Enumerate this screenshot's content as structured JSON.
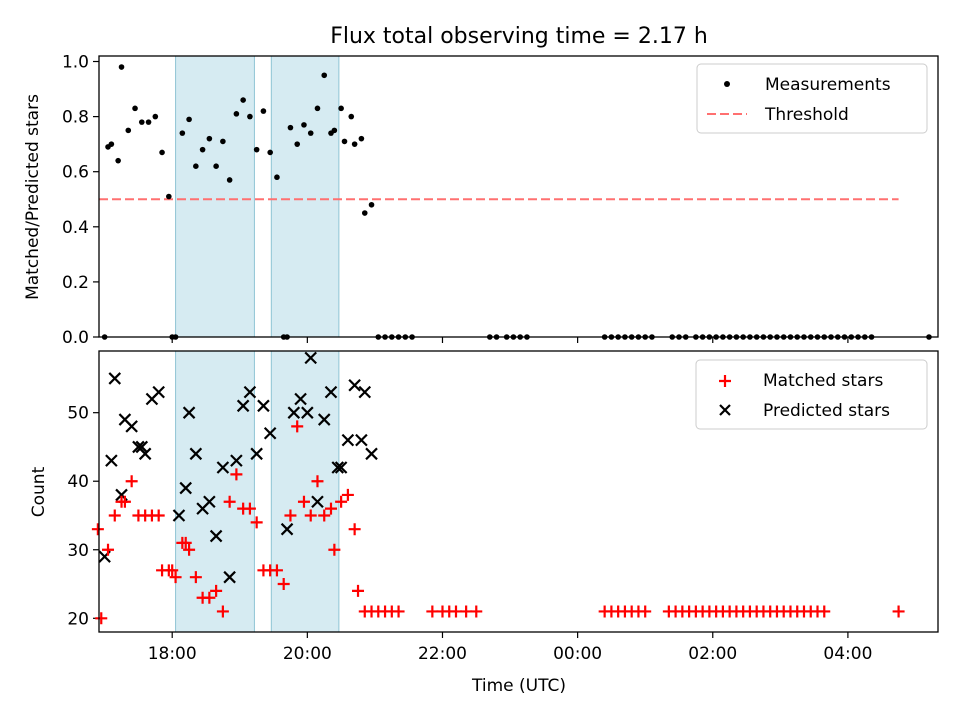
{
  "chart_data": [
    {
      "type": "scatter",
      "title": "Flux total observing time = 2.17 h",
      "xlabel": "",
      "ylabel": "Matched/Predicted stars",
      "xlim": [
        "16:55",
        "05:20"
      ],
      "ylim": [
        0,
        1.02
      ],
      "yticks": [
        0.0,
        0.2,
        0.4,
        0.6,
        0.8,
        1.0
      ],
      "ytick_labels": [
        "0.0",
        "0.2",
        "0.4",
        "0.6",
        "0.8",
        "1.0"
      ],
      "threshold": {
        "value": 0.5,
        "from": "16:55",
        "to": "04:45"
      },
      "shaded_intervals": [
        [
          "18:03",
          "19:13"
        ],
        [
          "19:28",
          "20:28"
        ]
      ],
      "legend": {
        "placement": "top-right",
        "entries": [
          "Measurements",
          "Threshold"
        ]
      },
      "series": [
        {
          "name": "Measurements",
          "color": "#000000",
          "marker": "dot",
          "points": [
            [
              "17:00",
              0.0
            ],
            [
              "17:03",
              0.69
            ],
            [
              "17:06",
              0.7
            ],
            [
              "17:12",
              0.64
            ],
            [
              "17:15",
              0.98
            ],
            [
              "17:21",
              0.75
            ],
            [
              "17:27",
              0.83
            ],
            [
              "17:33",
              0.78
            ],
            [
              "17:39",
              0.78
            ],
            [
              "17:45",
              0.8
            ],
            [
              "17:51",
              0.67
            ],
            [
              "17:57",
              0.51
            ],
            [
              "18:00",
              0.0
            ],
            [
              "18:03",
              0.0
            ],
            [
              "18:09",
              0.74
            ],
            [
              "18:15",
              0.79
            ],
            [
              "18:21",
              0.62
            ],
            [
              "18:27",
              0.68
            ],
            [
              "18:33",
              0.72
            ],
            [
              "18:39",
              0.62
            ],
            [
              "18:45",
              0.71
            ],
            [
              "18:51",
              0.57
            ],
            [
              "18:57",
              0.81
            ],
            [
              "19:03",
              0.86
            ],
            [
              "19:09",
              0.8
            ],
            [
              "19:15",
              0.68
            ],
            [
              "19:21",
              0.82
            ],
            [
              "19:27",
              0.67
            ],
            [
              "19:33",
              0.58
            ],
            [
              "19:39",
              0.0
            ],
            [
              "19:42",
              0.0
            ],
            [
              "19:45",
              0.76
            ],
            [
              "19:51",
              0.7
            ],
            [
              "19:57",
              0.77
            ],
            [
              "20:03",
              0.74
            ],
            [
              "20:09",
              0.83
            ],
            [
              "20:15",
              0.95
            ],
            [
              "20:21",
              0.74
            ],
            [
              "20:24",
              0.75
            ],
            [
              "20:30",
              0.83
            ],
            [
              "20:33",
              0.71
            ],
            [
              "20:39",
              0.8
            ],
            [
              "20:42",
              0.7
            ],
            [
              "20:48",
              0.72
            ],
            [
              "20:51",
              0.45
            ],
            [
              "20:57",
              0.48
            ],
            [
              "21:03",
              0.0
            ],
            [
              "21:09",
              0.0
            ],
            [
              "21:15",
              0.0
            ],
            [
              "21:21",
              0.0
            ],
            [
              "21:27",
              0.0
            ],
            [
              "21:33",
              0.0
            ],
            [
              "22:42",
              0.0
            ],
            [
              "22:48",
              0.0
            ],
            [
              "22:57",
              0.0
            ],
            [
              "23:03",
              0.0
            ],
            [
              "23:09",
              0.0
            ],
            [
              "23:15",
              0.0
            ],
            [
              "00:24",
              0.0
            ],
            [
              "00:30",
              0.0
            ],
            [
              "00:36",
              0.0
            ],
            [
              "00:42",
              0.0
            ],
            [
              "00:48",
              0.0
            ],
            [
              "00:54",
              0.0
            ],
            [
              "01:00",
              0.0
            ],
            [
              "01:06",
              0.0
            ],
            [
              "01:24",
              0.0
            ],
            [
              "01:30",
              0.0
            ],
            [
              "01:36",
              0.0
            ],
            [
              "01:45",
              0.0
            ],
            [
              "01:51",
              0.0
            ],
            [
              "01:57",
              0.0
            ],
            [
              "02:03",
              0.0
            ],
            [
              "02:09",
              0.0
            ],
            [
              "02:15",
              0.0
            ],
            [
              "02:21",
              0.0
            ],
            [
              "02:27",
              0.0
            ],
            [
              "02:33",
              0.0
            ],
            [
              "02:39",
              0.0
            ],
            [
              "02:45",
              0.0
            ],
            [
              "02:51",
              0.0
            ],
            [
              "02:57",
              0.0
            ],
            [
              "03:03",
              0.0
            ],
            [
              "03:09",
              0.0
            ],
            [
              "03:15",
              0.0
            ],
            [
              "03:21",
              0.0
            ],
            [
              "03:27",
              0.0
            ],
            [
              "03:33",
              0.0
            ],
            [
              "03:39",
              0.0
            ],
            [
              "03:45",
              0.0
            ],
            [
              "03:51",
              0.0
            ],
            [
              "03:57",
              0.0
            ],
            [
              "04:03",
              0.0
            ],
            [
              "04:09",
              0.0
            ],
            [
              "04:15",
              0.0
            ],
            [
              "04:21",
              0.0
            ],
            [
              "05:12",
              0.0
            ]
          ]
        },
        {
          "name": "Threshold",
          "color": "#ff7070",
          "style": "dashed"
        }
      ]
    },
    {
      "type": "scatter",
      "title": "",
      "xlabel": "Time (UTC)",
      "ylabel": "Count",
      "xlim": [
        "16:55",
        "05:20"
      ],
      "ylim": [
        18,
        59
      ],
      "yticks": [
        20,
        30,
        40,
        50
      ],
      "xtick_labels": [
        "18:00",
        "20:00",
        "22:00",
        "00:00",
        "02:00",
        "04:00"
      ],
      "shaded_intervals": [
        [
          "18:03",
          "19:13"
        ],
        [
          "19:28",
          "20:28"
        ]
      ],
      "legend": {
        "placement": "top-right",
        "entries": [
          "Matched stars",
          "Predicted stars"
        ]
      },
      "series": [
        {
          "name": "Matched stars",
          "color": "#ff0000",
          "marker": "plus",
          "points": [
            [
              "16:54",
              33
            ],
            [
              "16:57",
              20
            ],
            [
              "17:03",
              30
            ],
            [
              "17:09",
              35
            ],
            [
              "17:15",
              37
            ],
            [
              "17:18",
              37
            ],
            [
              "17:24",
              40
            ],
            [
              "17:30",
              35
            ],
            [
              "17:36",
              35
            ],
            [
              "17:42",
              35
            ],
            [
              "17:48",
              35
            ],
            [
              "17:51",
              27
            ],
            [
              "17:57",
              27
            ],
            [
              "18:00",
              27
            ],
            [
              "18:03",
              26
            ],
            [
              "18:09",
              31
            ],
            [
              "18:12",
              31
            ],
            [
              "18:15",
              30
            ],
            [
              "18:21",
              26
            ],
            [
              "18:27",
              23
            ],
            [
              "18:33",
              23
            ],
            [
              "18:39",
              24
            ],
            [
              "18:45",
              21
            ],
            [
              "18:51",
              37
            ],
            [
              "18:57",
              41
            ],
            [
              "19:03",
              36
            ],
            [
              "19:09",
              36
            ],
            [
              "19:15",
              34
            ],
            [
              "19:21",
              27
            ],
            [
              "19:27",
              27
            ],
            [
              "19:33",
              27
            ],
            [
              "19:39",
              25
            ],
            [
              "19:45",
              35
            ],
            [
              "19:51",
              48
            ],
            [
              "19:57",
              37
            ],
            [
              "20:03",
              35
            ],
            [
              "20:09",
              40
            ],
            [
              "20:15",
              35
            ],
            [
              "20:21",
              36
            ],
            [
              "20:24",
              30
            ],
            [
              "20:30",
              37
            ],
            [
              "20:36",
              38
            ],
            [
              "20:42",
              33
            ],
            [
              "20:45",
              24
            ],
            [
              "20:51",
              21
            ],
            [
              "20:57",
              21
            ],
            [
              "21:03",
              21
            ],
            [
              "21:09",
              21
            ],
            [
              "21:15",
              21
            ],
            [
              "21:21",
              21
            ],
            [
              "21:51",
              21
            ],
            [
              "22:00",
              21
            ],
            [
              "22:06",
              21
            ],
            [
              "22:12",
              21
            ],
            [
              "22:21",
              21
            ],
            [
              "22:30",
              21
            ],
            [
              "00:24",
              21
            ],
            [
              "00:30",
              21
            ],
            [
              "00:36",
              21
            ],
            [
              "00:42",
              21
            ],
            [
              "00:48",
              21
            ],
            [
              "00:54",
              21
            ],
            [
              "01:00",
              21
            ],
            [
              "01:21",
              21
            ],
            [
              "01:27",
              21
            ],
            [
              "01:33",
              21
            ],
            [
              "01:39",
              21
            ],
            [
              "01:45",
              21
            ],
            [
              "01:51",
              21
            ],
            [
              "01:57",
              21
            ],
            [
              "02:03",
              21
            ],
            [
              "02:09",
              21
            ],
            [
              "02:15",
              21
            ],
            [
              "02:21",
              21
            ],
            [
              "02:27",
              21
            ],
            [
              "02:33",
              21
            ],
            [
              "02:39",
              21
            ],
            [
              "02:45",
              21
            ],
            [
              "02:51",
              21
            ],
            [
              "02:57",
              21
            ],
            [
              "03:03",
              21
            ],
            [
              "03:09",
              21
            ],
            [
              "03:15",
              21
            ],
            [
              "03:21",
              21
            ],
            [
              "03:27",
              21
            ],
            [
              "03:33",
              21
            ],
            [
              "03:39",
              21
            ],
            [
              "04:45",
              21
            ]
          ]
        },
        {
          "name": "Predicted stars",
          "color": "#000000",
          "marker": "x",
          "points": [
            [
              "17:00",
              29
            ],
            [
              "17:06",
              43
            ],
            [
              "17:09",
              55
            ],
            [
              "17:15",
              38
            ],
            [
              "17:18",
              49
            ],
            [
              "17:24",
              48
            ],
            [
              "17:30",
              45
            ],
            [
              "17:33",
              45
            ],
            [
              "17:36",
              44
            ],
            [
              "17:42",
              52
            ],
            [
              "17:48",
              53
            ],
            [
              "18:06",
              35
            ],
            [
              "18:12",
              39
            ],
            [
              "18:15",
              50
            ],
            [
              "18:21",
              44
            ],
            [
              "18:27",
              36
            ],
            [
              "18:33",
              37
            ],
            [
              "18:39",
              32
            ],
            [
              "18:45",
              42
            ],
            [
              "18:51",
              26
            ],
            [
              "18:57",
              43
            ],
            [
              "19:03",
              51
            ],
            [
              "19:09",
              53
            ],
            [
              "19:15",
              44
            ],
            [
              "19:21",
              51
            ],
            [
              "19:27",
              47
            ],
            [
              "19:42",
              33
            ],
            [
              "19:48",
              50
            ],
            [
              "19:54",
              52
            ],
            [
              "20:00",
              50
            ],
            [
              "20:03",
              58
            ],
            [
              "20:09",
              37
            ],
            [
              "20:15",
              49
            ],
            [
              "20:21",
              53
            ],
            [
              "20:27",
              42
            ],
            [
              "20:30",
              42
            ],
            [
              "20:36",
              46
            ],
            [
              "20:42",
              54
            ],
            [
              "20:48",
              46
            ],
            [
              "20:51",
              53
            ],
            [
              "20:57",
              44
            ]
          ]
        }
      ]
    }
  ]
}
